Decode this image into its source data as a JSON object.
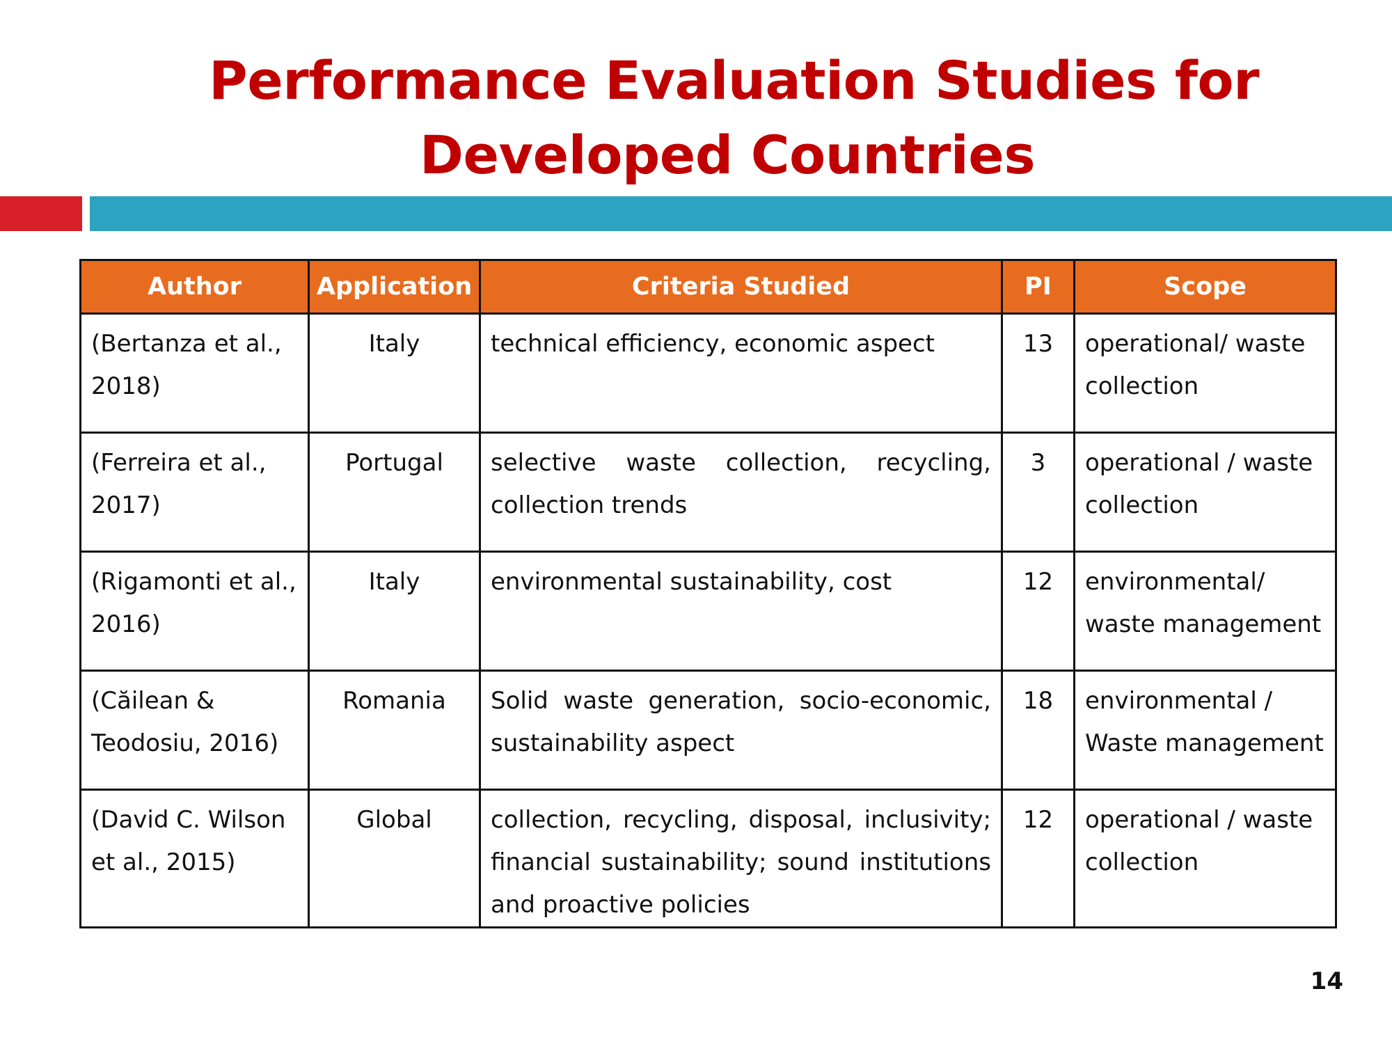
{
  "slide": {
    "title_line1": "Performance Evaluation Studies for",
    "title_line2": "Developed Countries",
    "page_number": "14",
    "colors": {
      "title": "#c00000",
      "header_fill": "#e86c1f",
      "bar_red": "#d71f2a",
      "bar_blue": "#2ca4c1"
    }
  },
  "table": {
    "headers": [
      "Author",
      "Application",
      "Criteria Studied",
      "PI",
      "Scope"
    ],
    "rows": [
      {
        "author": "(Bertanza et al., 2018)",
        "application": "Italy",
        "criteria": "technical efficiency, economic aspect",
        "pi": "13",
        "scope": "operational/ waste collection"
      },
      {
        "author": "(Ferreira et al., 2017)",
        "application": "Portugal",
        "criteria": "selective waste collection, recycling, collection trends",
        "pi": "3",
        "scope": "operational / waste collection"
      },
      {
        "author": "(Rigamonti et al., 2016)",
        "application": "Italy",
        "criteria": "environmental sustainability, cost",
        "pi": "12",
        "scope": "environmental/ waste management"
      },
      {
        "author": "(Căilean & Teodosiu, 2016)",
        "application": "Romania",
        "criteria": "Solid waste generation, socio-economic, sustainability aspect",
        "pi": "18",
        "scope": "environmental / Waste management"
      },
      {
        "author": "(David C. Wilson et al., 2015)",
        "application": "Global",
        "criteria": "collection, recycling, disposal, inclusivity; financial sustainability; sound institutions and proactive policies",
        "pi": "12",
        "scope": "operational / waste collection"
      }
    ]
  }
}
